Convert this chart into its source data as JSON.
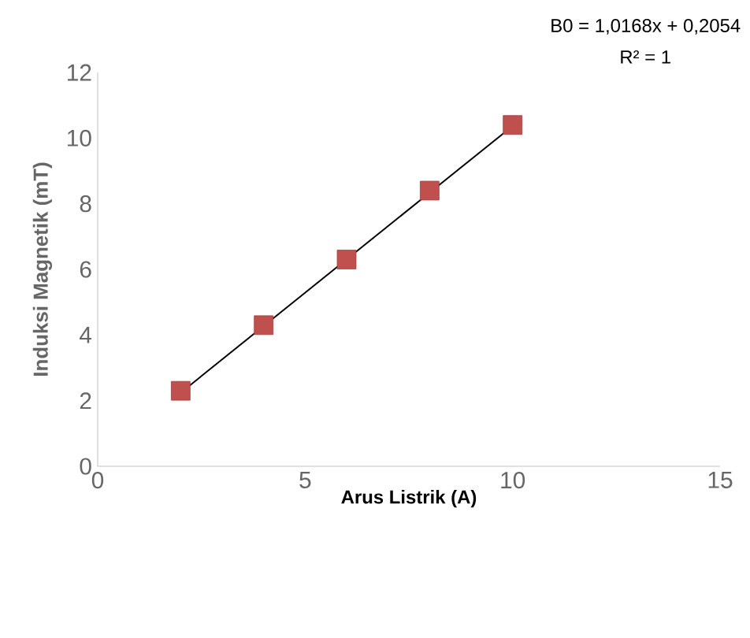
{
  "chart_data": {
    "type": "scatter",
    "xlabel": "Arus Listrik (A)",
    "ylabel": "Induksi Magnetik (mT)",
    "xlim": [
      0,
      15
    ],
    "xticks": [
      0,
      5,
      10,
      15
    ],
    "ylim": [
      0,
      12
    ],
    "yticks": [
      0,
      2,
      4,
      6,
      8,
      10,
      12
    ],
    "grid": false,
    "series": [
      {
        "color": "#c0504d",
        "marker": "square",
        "x": [
          2,
          4,
          6,
          8,
          10
        ],
        "values": [
          2.3,
          4.3,
          6.3,
          8.4,
          10.4
        ]
      },
      {
        "type": "line",
        "color": "#000000",
        "marker": "none",
        "line_style": "solid",
        "x": [
          2,
          10
        ],
        "values": [
          2.24,
          10.37
        ]
      }
    ],
    "annotations": [
      "B0 = 1,0168x + 0,2054",
      "R² = 1"
    ]
  }
}
